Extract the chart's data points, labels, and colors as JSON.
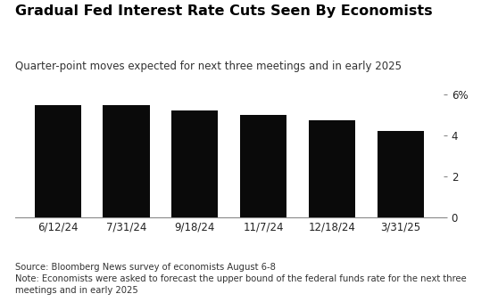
{
  "title": "Gradual Fed Interest Rate Cuts Seen By Economists",
  "subtitle": "Quarter-point moves expected for next three meetings and in early 2025",
  "categories": [
    "6/12/24",
    "7/31/24",
    "9/18/24",
    "11/7/24",
    "12/18/24",
    "3/31/25"
  ],
  "values": [
    5.5,
    5.5,
    5.25,
    5.0,
    4.75,
    4.25
  ],
  "bar_color": "#0a0a0a",
  "background_color": "#ffffff",
  "ylim": [
    0,
    6.5
  ],
  "yticks": [
    0,
    2,
    4,
    6
  ],
  "ytick_labels": [
    "0",
    "2",
    "4",
    "6%"
  ],
  "source_text": "Source: Bloomberg News survey of economists August 6-8",
  "note_text": "Note: Economists were asked to forecast the upper bound of the federal funds rate for the next three\nmeetings and in early 2025",
  "title_fontsize": 11.5,
  "subtitle_fontsize": 8.5,
  "annotation_fontsize": 7.2,
  "tick_fontsize": 8.5
}
